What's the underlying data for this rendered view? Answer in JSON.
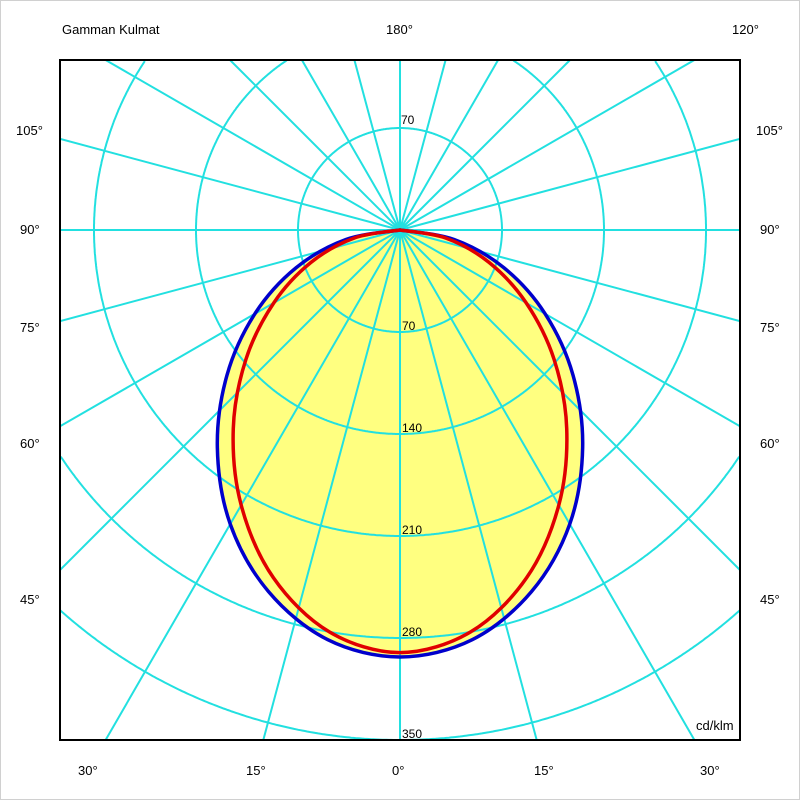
{
  "chart_data": {
    "type": "polar",
    "title": "Gamman Kulmat",
    "unit": "cd/klm",
    "radial_ticks": [
      70,
      140,
      210,
      280,
      350
    ],
    "top_radial_tick": "70",
    "radial_step": 70,
    "angle_step_deg": 15,
    "angle_labels": {
      "top_center": "180°",
      "top_right": "120°",
      "left": [
        "105°",
        "90°",
        "75°",
        "60°",
        "45°"
      ],
      "right": [
        "105°",
        "90°",
        "75°",
        "60°",
        "45°"
      ],
      "bottom": [
        "30°",
        "15°",
        "0°",
        "15°",
        "30°"
      ]
    },
    "angles_deg": [
      0,
      10,
      20,
      30,
      40,
      50,
      60,
      70,
      80,
      90
    ],
    "series": [
      {
        "color": "#0000cc",
        "fill": "#ffff80",
        "values": [
          293,
          285.5,
          264,
          233,
          195,
          155,
          115,
          76,
          37.7,
          0
        ]
      },
      {
        "color": "#e00000",
        "values": [
          290,
          280,
          254,
          218,
          178,
          138,
          100,
          65,
          32,
          0
        ]
      }
    ],
    "grid_color": "#22e0e0",
    "grid": true
  }
}
